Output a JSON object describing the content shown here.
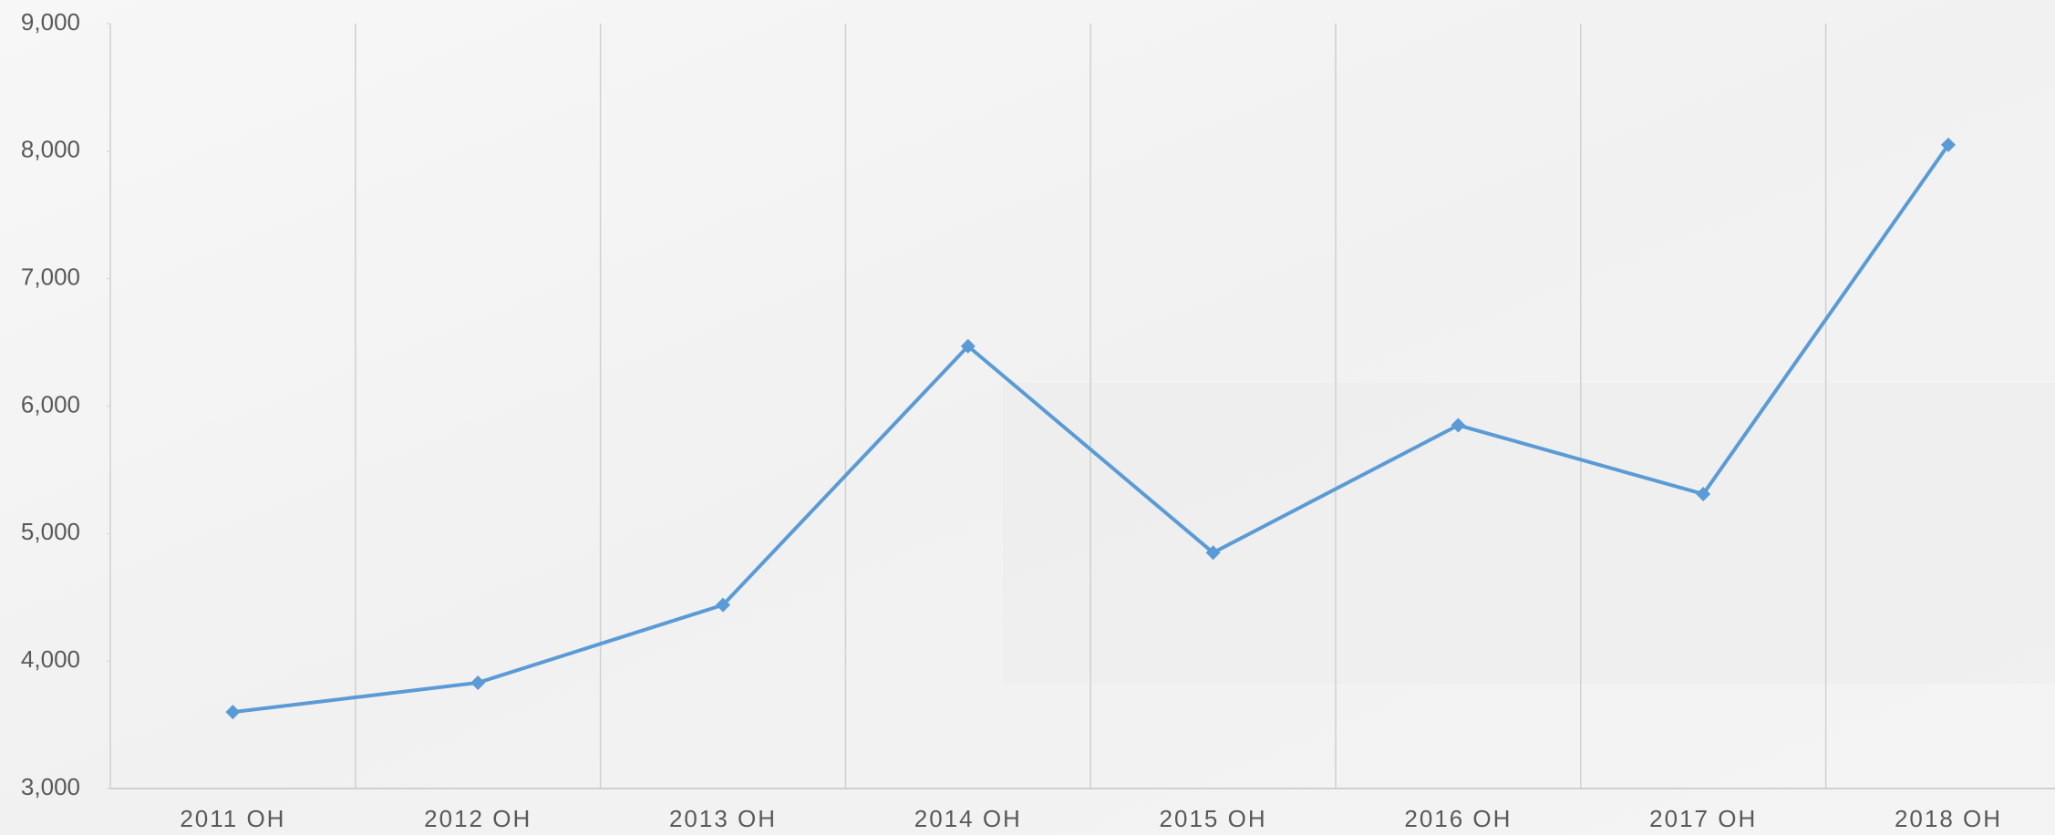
{
  "chart_data": {
    "type": "line",
    "categories": [
      "2011 OH",
      "2012 OH",
      "2013 OH",
      "2014 OH",
      "2015 OH",
      "2016 OH",
      "2017 OH",
      "2018 OH"
    ],
    "series": [
      {
        "color": "#5b9bd5",
        "values": [
          3600,
          3830,
          4440,
          6470,
          4850,
          5850,
          5310,
          8050
        ]
      }
    ],
    "ylim": [
      3000,
      9000
    ],
    "yticks": [
      {
        "value": 3000,
        "label": "3,000"
      },
      {
        "value": 4000,
        "label": "4,000"
      },
      {
        "value": 5000,
        "label": "5,000"
      },
      {
        "value": 6000,
        "label": "6,000"
      },
      {
        "value": 7000,
        "label": "7,000"
      },
      {
        "value": 8000,
        "label": "8,000"
      },
      {
        "value": 9000,
        "label": "9,000"
      }
    ],
    "grid": true
  }
}
